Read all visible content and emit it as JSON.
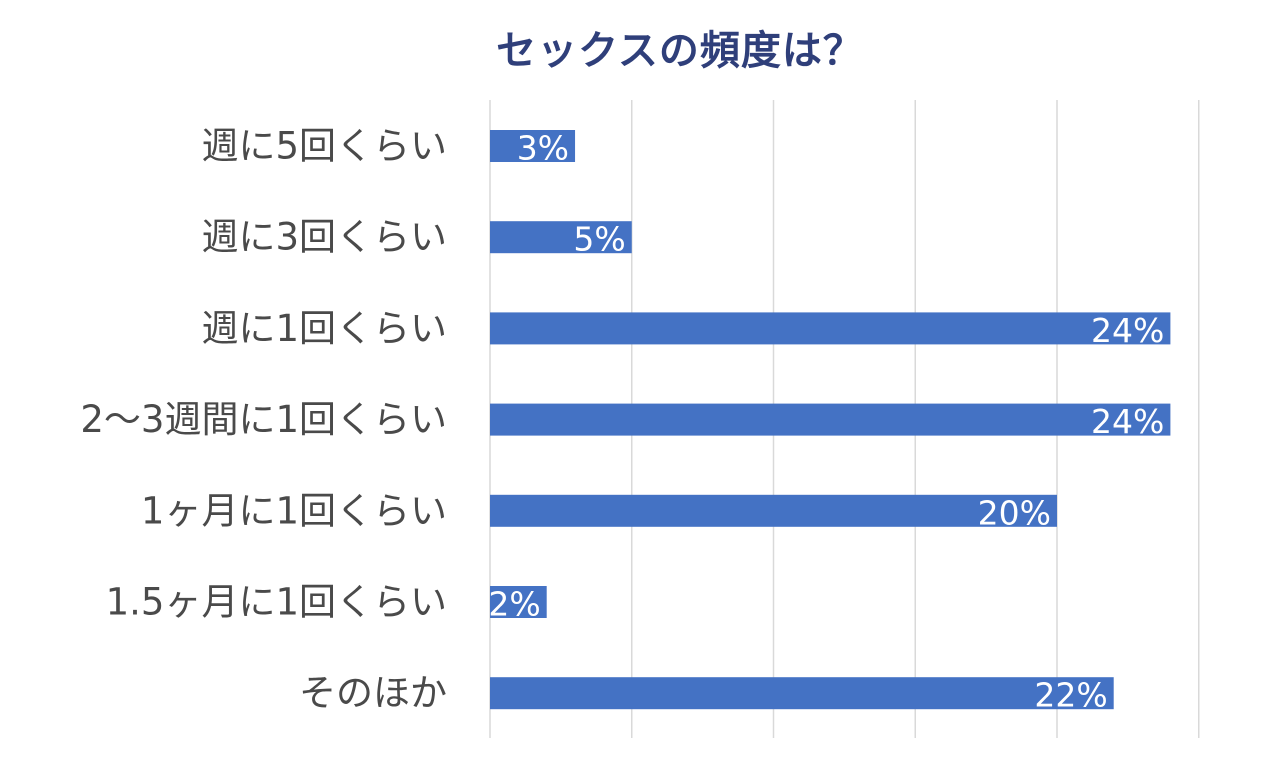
{
  "chart_data": {
    "type": "bar",
    "orientation": "horizontal",
    "title": "セックスの頻度は？",
    "categories": [
      "週に5回くらい",
      "週に3回くらい",
      "週に1回くらい",
      "2〜3週間に1回くらい",
      "1ヶ月に1回くらい",
      "1.5ヶ月に1回くらい",
      "そのほか"
    ],
    "values": [
      3,
      5,
      24,
      24,
      20,
      2,
      22
    ],
    "data_labels": [
      "3%",
      "5%",
      "24%",
      "24%",
      "20%",
      "2%",
      "22%"
    ],
    "xlim": [
      0,
      25
    ],
    "grid": true,
    "bar_color": "#4472c4",
    "title_color": "#2f3f7a",
    "label_color": "#4a4a4a"
  }
}
